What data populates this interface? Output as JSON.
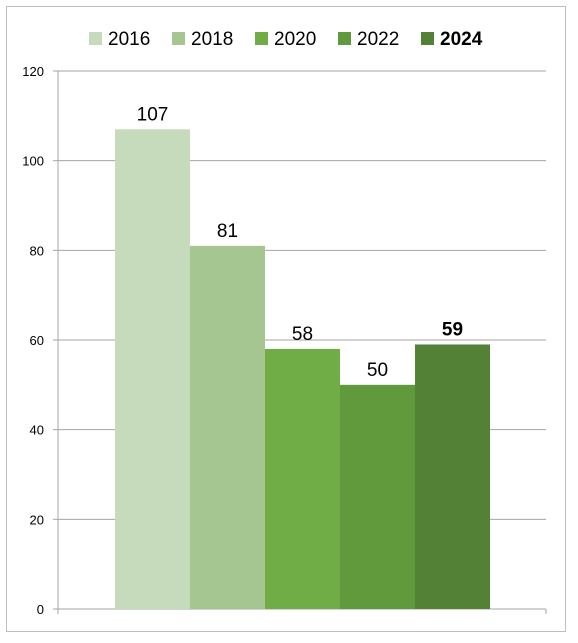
{
  "chart_data": {
    "type": "bar",
    "categories": [
      "2016",
      "2018",
      "2020",
      "2022",
      "2024"
    ],
    "values": [
      107,
      81,
      58,
      50,
      59
    ],
    "ylim": [
      0,
      120
    ],
    "yticks": [
      0,
      20,
      40,
      60,
      80,
      100,
      120
    ],
    "colors": [
      "#c5dbbc",
      "#a5c690",
      "#70ad47",
      "#61993d",
      "#538135"
    ],
    "emphasized_category": "2024",
    "grid": true,
    "legend_position": "top"
  }
}
